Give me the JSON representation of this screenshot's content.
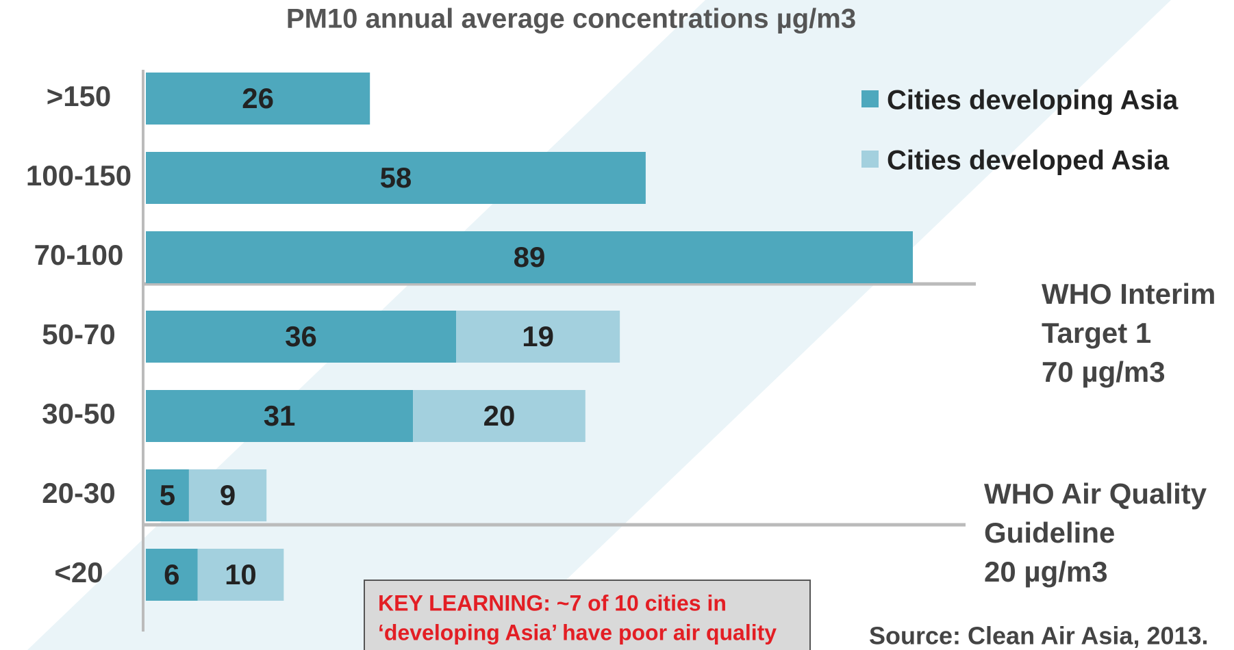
{
  "chart_data": {
    "type": "bar",
    "orientation": "horizontal",
    "stacked": true,
    "title": "PM10 annual average concentrations µg/m3",
    "categories": [
      ">150",
      "100-150",
      "70-100",
      "50-70",
      "30-50",
      "20-30",
      "<20"
    ],
    "series": [
      {
        "name": "Cities developing Asia",
        "color": "#4ea8bd",
        "values": [
          26,
          58,
          89,
          36,
          31,
          5,
          6
        ]
      },
      {
        "name": "Cities developed Asia",
        "color": "#a3d0de",
        "values": [
          null,
          null,
          null,
          19,
          20,
          9,
          10
        ]
      }
    ],
    "legend": "top-right",
    "annotations": [
      {
        "lines": [
          "WHO Interim",
          "Target 1",
          "70 µg/m3"
        ]
      },
      {
        "lines": [
          "WHO Air Quality",
          "Guideline",
          "20 µg/m3"
        ]
      }
    ],
    "key_learning": [
      "KEY LEARNING: ~7 of 10 cities in",
      "‘developing Asia’ have poor air quality"
    ],
    "source": "Source: Clean Air Asia, 2013."
  }
}
